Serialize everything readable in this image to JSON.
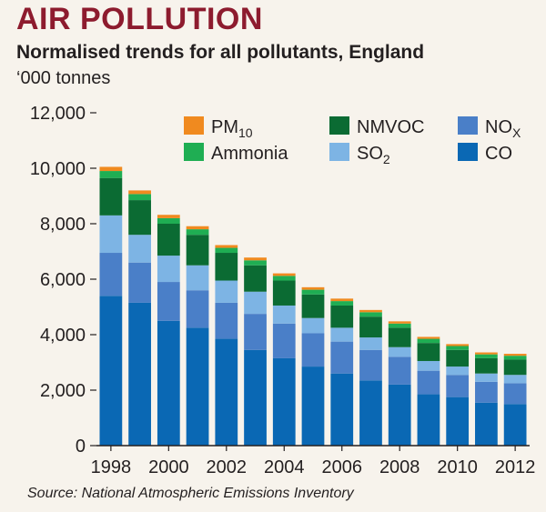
{
  "title": "AIR POLLUTION",
  "subtitle": "Normalised trends for all pollutants, England",
  "unit": "‘000 tonnes",
  "source": "Source: National Atmospheric Emissions Inventory",
  "chart_data": {
    "type": "bar",
    "stacked": true,
    "title": "AIR POLLUTION",
    "subtitle": "Normalised trends for all pollutants, England",
    "ylabel": "‘000 tonnes",
    "ylim": [
      0,
      12000
    ],
    "yticks": [
      0,
      2000,
      4000,
      6000,
      8000,
      10000,
      12000
    ],
    "ytick_labels": [
      "0",
      "2,000",
      "4,000",
      "6,000",
      "8,000",
      "10,000",
      "12,000"
    ],
    "categories": [
      1998,
      1999,
      2000,
      2001,
      2002,
      2003,
      2004,
      2005,
      2006,
      2007,
      2008,
      2009,
      2010,
      2011,
      2012
    ],
    "xtick_labels": [
      "1998",
      "2000",
      "2002",
      "2004",
      "2006",
      "2008",
      "2010",
      "2012"
    ],
    "grid": false,
    "legend_position": "top-right",
    "series": [
      {
        "name": "CO",
        "color": "#0a68b4",
        "values": [
          5400,
          5150,
          4500,
          4250,
          3850,
          3450,
          3150,
          2850,
          2600,
          2350,
          2200,
          1850,
          1750,
          1550,
          1500
        ]
      },
      {
        "name": "NOX",
        "color": "#4a7fc8",
        "values": [
          1550,
          1450,
          1400,
          1350,
          1300,
          1300,
          1250,
          1200,
          1150,
          1100,
          1000,
          850,
          800,
          750,
          750
        ]
      },
      {
        "name": "SO2",
        "color": "#7db4e4",
        "values": [
          1350,
          1000,
          950,
          900,
          800,
          800,
          650,
          550,
          500,
          450,
          350,
          350,
          300,
          300,
          300
        ]
      },
      {
        "name": "NMVOC",
        "color": "#0b6b33",
        "values": [
          1350,
          1250,
          1150,
          1100,
          1000,
          950,
          900,
          850,
          800,
          750,
          700,
          650,
          600,
          550,
          550
        ]
      },
      {
        "name": "Ammonia",
        "color": "#1fae53",
        "values": [
          250,
          220,
          200,
          200,
          180,
          180,
          170,
          170,
          160,
          160,
          150,
          150,
          140,
          140,
          140
        ]
      },
      {
        "name": "PM10",
        "color": "#f08a1f",
        "values": [
          150,
          130,
          120,
          110,
          100,
          100,
          90,
          90,
          90,
          80,
          80,
          70,
          70,
          70,
          70
        ]
      }
    ],
    "legend": [
      {
        "key": "PM10",
        "base": "PM",
        "sub": "10"
      },
      {
        "key": "NMVOC",
        "base": "NMVOC",
        "sub": ""
      },
      {
        "key": "NOX",
        "base": "NO",
        "sub": "X"
      },
      {
        "key": "Ammonia",
        "base": "Ammonia",
        "sub": ""
      },
      {
        "key": "SO2",
        "base": "SO",
        "sub": "2"
      },
      {
        "key": "CO",
        "base": "CO",
        "sub": ""
      }
    ]
  }
}
